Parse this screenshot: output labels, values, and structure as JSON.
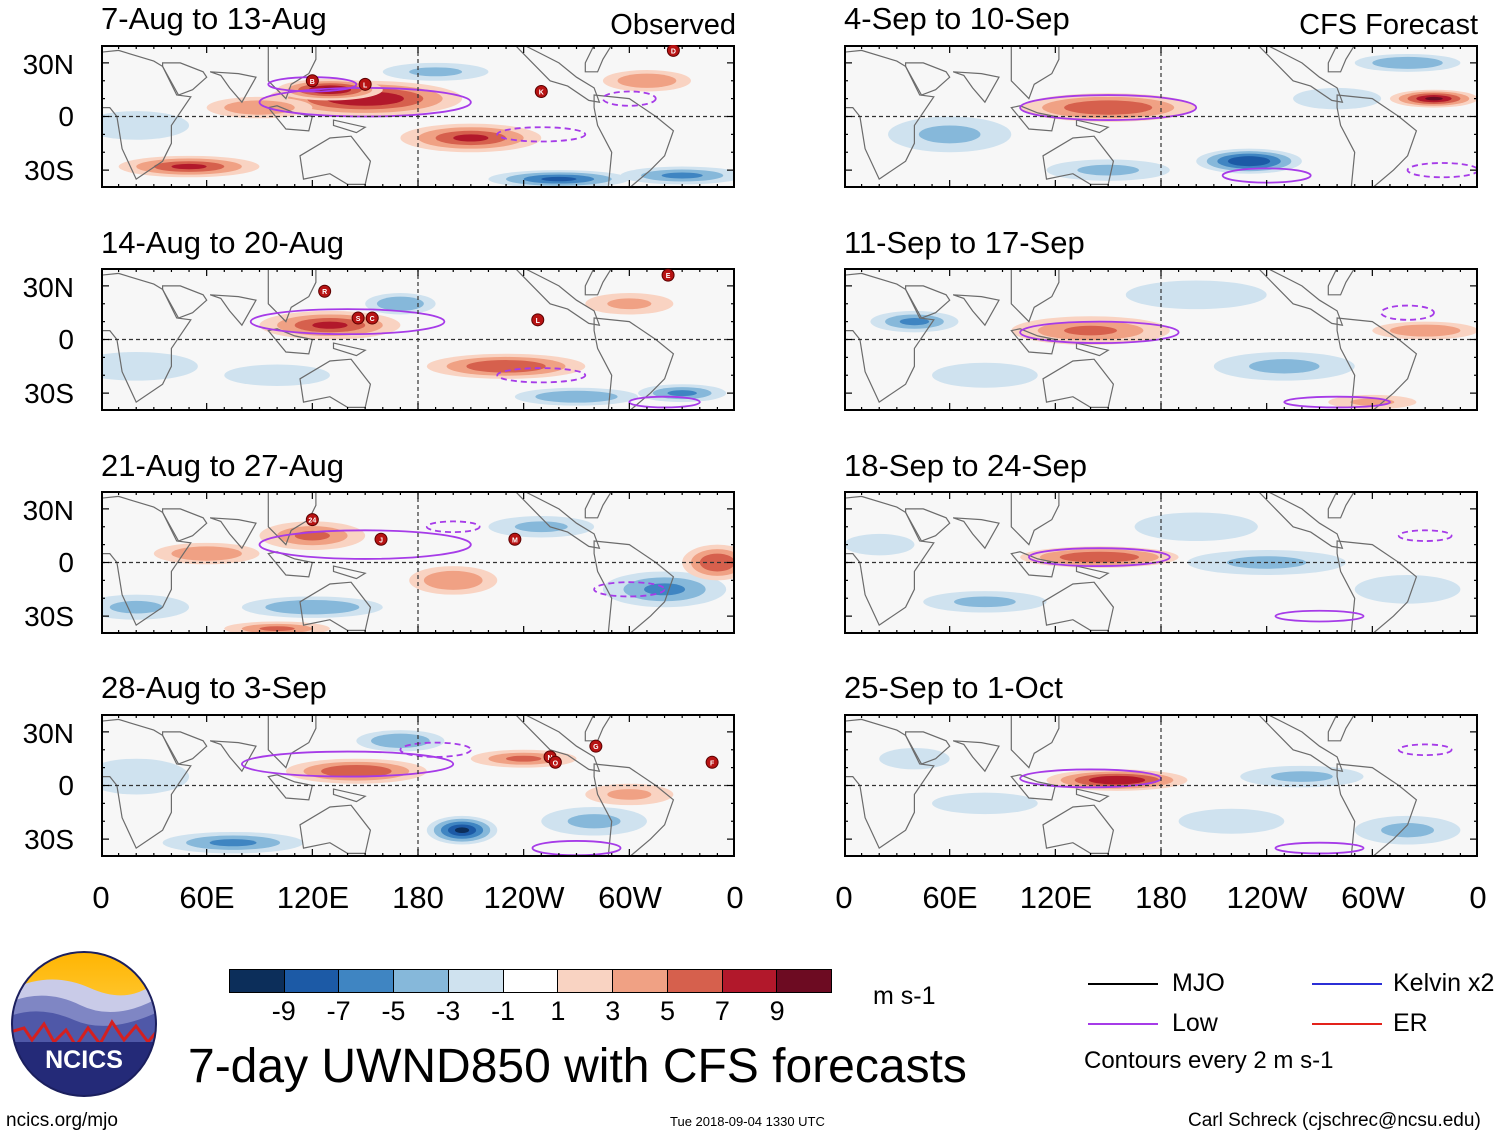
{
  "header": {
    "observed_label": "Observed",
    "forecast_label": "CFS Forecast"
  },
  "panels": {
    "observed": [
      {
        "title": "7-Aug to 13-Aug"
      },
      {
        "title": "14-Aug to 20-Aug"
      },
      {
        "title": "21-Aug to 27-Aug"
      },
      {
        "title": "28-Aug to 3-Sep"
      }
    ],
    "forecast": [
      {
        "title": "4-Sep to 10-Sep"
      },
      {
        "title": "11-Sep to 17-Sep"
      },
      {
        "title": "18-Sep to 24-Sep"
      },
      {
        "title": "25-Sep to 1-Oct"
      }
    ]
  },
  "axes": {
    "y_ticks": [
      "30N",
      "0",
      "30S"
    ],
    "x_ticks": [
      "0",
      "60E",
      "120E",
      "180",
      "120W",
      "60W",
      "0"
    ]
  },
  "colorbar": {
    "labels": [
      "-9",
      "-7",
      "-5",
      "-3",
      "-1",
      "1",
      "3",
      "5",
      "7",
      "9"
    ],
    "units": "m s-1",
    "colors": [
      "#0c2e5a",
      "#1c5aa6",
      "#3f85c2",
      "#86b8da",
      "#cfe2ef",
      "#ffffff",
      "#f9d3c2",
      "#f0a184",
      "#d6604d",
      "#b2182b",
      "#6d0b22"
    ]
  },
  "legend": {
    "items": [
      {
        "label": "MJO",
        "color": "#000000"
      },
      {
        "label": "Kelvin x2",
        "color": "#2b2fd6"
      },
      {
        "label": "Low",
        "color": "#a63be8"
      },
      {
        "label": "ER",
        "color": "#e3221b"
      }
    ],
    "note": "Contours every 2 m s-1"
  },
  "footer": {
    "main_title": "7-day UWND850 with CFS forecasts",
    "logo_text": "NCICS",
    "url": "ncics.org/mjo",
    "timestamp": "Tue 2018-09-04 1330 UTC",
    "credit": "Carl Schreck (cjschrec@ncsu.edu)"
  },
  "chart_data": {
    "type": "heatmap",
    "title": "7-day UWND850 with CFS forecasts",
    "variable": "850-hPa zonal wind anomaly",
    "units": "m s-1",
    "contour_interval": "2 m s-1",
    "x_axis": {
      "range": [
        "0",
        "0"
      ],
      "ticks": [
        "0",
        "60E",
        "120E",
        "180",
        "120W",
        "60W",
        "0"
      ]
    },
    "y_axis": {
      "range": [
        "40S",
        "40N"
      ],
      "ticks": [
        "30N",
        "0",
        "30S"
      ]
    },
    "color_levels": [
      -9,
      -7,
      -5,
      -3,
      -1,
      1,
      3,
      5,
      7,
      9
    ],
    "storm_markers": {
      "7-Aug to 13-Aug": [
        "B",
        "L",
        "K",
        "D"
      ],
      "14-Aug to 20-Aug": [
        "R",
        "S",
        "C",
        "L",
        "E"
      ],
      "21-Aug to 27-Aug": [
        "24",
        "J",
        "M"
      ],
      "28-Aug to 3-Sep": [
        "N",
        "O",
        "G",
        "F"
      ]
    }
  }
}
